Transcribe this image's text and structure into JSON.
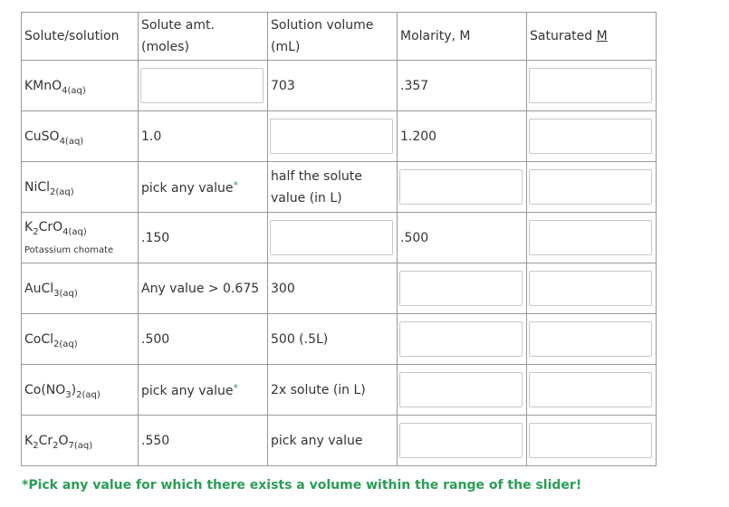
{
  "table": {
    "headers": [
      "Solute/solution",
      "Solute amt. (moles)",
      "Solution volume (mL)",
      "Molarity, M",
      {
        "text": "Saturated",
        "underlined": "M"
      }
    ],
    "rows": [
      {
        "solute": [
          "KMnO",
          "4(aq)"
        ],
        "cells": [
          null,
          "703",
          ".357",
          null
        ]
      },
      {
        "solute": [
          "CuSO",
          "4(aq)"
        ],
        "cells": [
          "1.0",
          null,
          "1.200",
          null
        ]
      },
      {
        "solute": [
          "NiCl",
          "2(aq)"
        ],
        "cells": [
          {
            "text": "pick any value",
            "marker": "*"
          },
          "half the solute value (in L)",
          null,
          null
        ]
      },
      {
        "solute": [
          "K",
          "2",
          "CrO",
          "4(aq)"
        ],
        "note": "Potassium chomate",
        "cells": [
          ".150",
          null,
          ".500",
          null
        ]
      },
      {
        "solute": [
          "AuCl",
          "3(aq)"
        ],
        "cells": [
          "Any value  > 0.675",
          "300",
          null,
          null
        ]
      },
      {
        "solute": [
          "CoCl",
          "2(aq)"
        ],
        "cells": [
          ".500",
          "500 (.5L)",
          null,
          null
        ]
      },
      {
        "solute": [
          "Co(NO",
          "3",
          ")",
          "2(aq)"
        ],
        "cells": [
          {
            "text": "pick any value",
            "marker": "*"
          },
          "2x solute (in L)",
          null,
          null
        ]
      },
      {
        "solute": [
          "K",
          "2",
          "Cr",
          "2",
          "O",
          "7(aq)"
        ],
        "cells": [
          ".550",
          "pick any value",
          null,
          null
        ]
      }
    ],
    "footnote": "*Pick any value for which there exists a volume within the range of the slider!"
  }
}
